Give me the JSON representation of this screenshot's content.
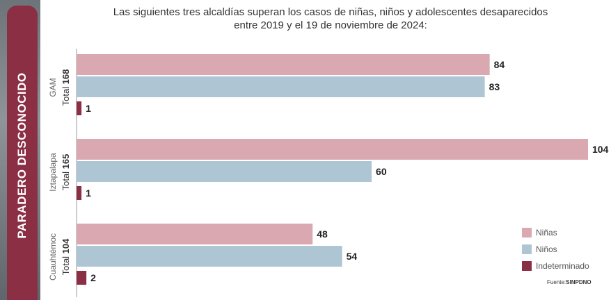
{
  "side_label": "PARADERO DESCONOCIDO",
  "title_lines": [
    "Las siguientes tres alcaldías superan los casos de niñas, niños y adolescentes desaparecidos",
    "entre 2019 y el 19 de noviembre de 2024:"
  ],
  "colors": {
    "ninas": "#d9a8b0",
    "ninos": "#aec6d4",
    "indeterminado": "#8b2f45",
    "banner": "#8b2f45"
  },
  "chart_data": {
    "type": "bar",
    "orientation": "horizontal",
    "title": "Las siguientes tres alcaldías superan los casos de niñas, niños y adolescentes desaparecidos entre 2019 y el 19 de noviembre de 2024:",
    "groups": [
      {
        "name": "GAM",
        "total_label": "Total",
        "total": "168",
        "values": [
          84,
          83,
          1
        ]
      },
      {
        "name": "Iztapalapa",
        "total_label": "Total",
        "total": "165",
        "values": [
          104,
          60,
          1
        ]
      },
      {
        "name": "Cuauhtémoc",
        "total_label": "Total",
        "total": "104",
        "values": [
          48,
          54,
          2
        ]
      }
    ],
    "series": [
      {
        "name": "Niñas"
      },
      {
        "name": "Niños"
      },
      {
        "name": "Indeterminado"
      }
    ],
    "xlim": [
      0,
      104
    ],
    "grid": false,
    "legend_position": "bottom-right"
  },
  "source": {
    "prefix": "Fuente:",
    "name": "SINPDNO"
  }
}
